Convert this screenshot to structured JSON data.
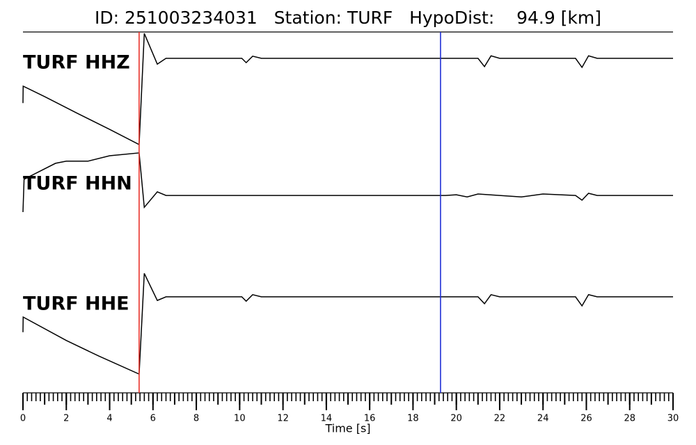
{
  "chart_data": {
    "type": "line",
    "title": "ID: 251003234031   Station: TURF   HypoDist:    94.9 [km]",
    "xlabel": "Time [s]",
    "xlim": [
      0,
      30
    ],
    "xticks": [
      0,
      2,
      4,
      6,
      8,
      10,
      12,
      14,
      16,
      18,
      20,
      22,
      24,
      26,
      28,
      30
    ],
    "xminor_step": 0.2,
    "ylim": [
      0,
      10
    ],
    "label_color": "#4c9a00",
    "markers": [
      {
        "x": 5.36,
        "color": "#e8322a"
      },
      {
        "x": 19.27,
        "color": "#1f2fd6"
      }
    ],
    "series": [
      {
        "name": "TURF HHZ",
        "color": "#000000",
        "x": [
          0,
          0.01,
          1,
          2.5,
          4,
          5.36,
          5.6,
          6.2,
          6.6,
          10.1,
          10.3,
          10.6,
          11,
          21,
          21.3,
          21.6,
          22,
          25.5,
          25.8,
          26.1,
          26.5,
          30
        ],
        "values": [
          8.03,
          8.5,
          8.21,
          7.75,
          7.3,
          6.88,
          9.96,
          9.11,
          9.27,
          9.27,
          9.15,
          9.33,
          9.27,
          9.27,
          9.04,
          9.34,
          9.27,
          9.27,
          9.02,
          9.34,
          9.27,
          9.27
        ]
      },
      {
        "name": "TURF HHN",
        "color": "#000000",
        "x": [
          0,
          0.05,
          1.5,
          2,
          3,
          4,
          5.36,
          5.6,
          6.2,
          6.6,
          19.5,
          20,
          20.5,
          21,
          23,
          24,
          25.5,
          25.8,
          26.1,
          26.5,
          30
        ],
        "values": [
          5.01,
          5.92,
          6.36,
          6.42,
          6.42,
          6.57,
          6.65,
          5.14,
          5.57,
          5.47,
          5.47,
          5.49,
          5.43,
          5.51,
          5.43,
          5.51,
          5.47,
          5.34,
          5.53,
          5.47,
          5.47
        ]
      },
      {
        "name": "TURF HHE",
        "color": "#000000",
        "x": [
          0,
          0.01,
          2,
          3.5,
          5.36,
          5.6,
          6.2,
          6.6,
          10.1,
          10.3,
          10.6,
          11,
          21,
          21.3,
          21.6,
          22,
          25.5,
          25.8,
          26.1,
          26.5,
          30
        ],
        "values": [
          1.68,
          2.1,
          1.45,
          1.02,
          0.52,
          3.31,
          2.56,
          2.66,
          2.66,
          2.54,
          2.72,
          2.66,
          2.66,
          2.47,
          2.72,
          2.66,
          2.66,
          2.41,
          2.72,
          2.66,
          2.66
        ]
      }
    ]
  }
}
